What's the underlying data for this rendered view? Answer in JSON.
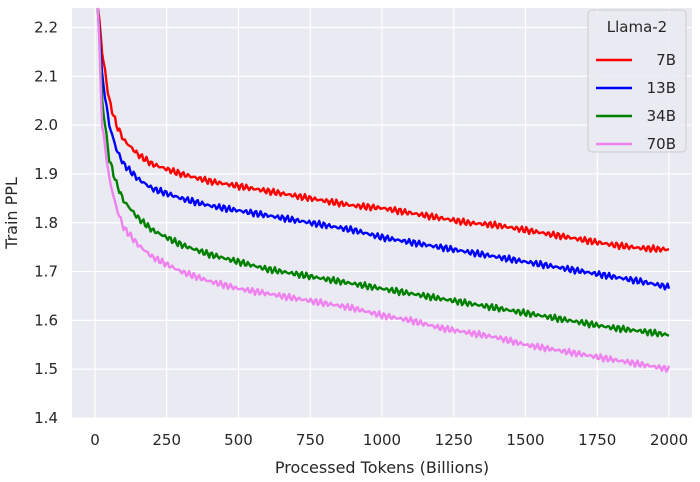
{
  "chart_data": {
    "type": "line",
    "title": "",
    "xlabel": "Processed Tokens (Billions)",
    "ylabel": "Train PPL",
    "xlim": [
      -80,
      2080
    ],
    "ylim": [
      1.4,
      2.24
    ],
    "xticks": [
      0,
      250,
      500,
      750,
      1000,
      1250,
      1500,
      1750,
      2000
    ],
    "yticks": [
      1.4,
      1.5,
      1.6,
      1.7,
      1.8,
      1.9,
      2.0,
      2.1,
      2.2
    ],
    "grid": true,
    "legend": {
      "title": "Llama-2",
      "position": "top-right"
    },
    "x": [
      10,
      25,
      50,
      75,
      100,
      150,
      200,
      250,
      300,
      400,
      500,
      600,
      700,
      800,
      900,
      1000,
      1100,
      1200,
      1300,
      1400,
      1500,
      1600,
      1700,
      1800,
      1900,
      2000
    ],
    "series": [
      {
        "name": "7B",
        "color": "#ff0000",
        "values": [
          2.25,
          2.15,
          2.05,
          2.0,
          1.97,
          1.94,
          1.92,
          1.91,
          1.9,
          1.885,
          1.875,
          1.865,
          1.855,
          1.845,
          1.835,
          1.83,
          1.82,
          1.81,
          1.8,
          1.795,
          1.785,
          1.775,
          1.765,
          1.755,
          1.748,
          1.745
        ]
      },
      {
        "name": "13B",
        "color": "#0000ff",
        "values": [
          2.25,
          2.1,
          2.0,
          1.95,
          1.92,
          1.89,
          1.87,
          1.86,
          1.85,
          1.835,
          1.825,
          1.815,
          1.805,
          1.795,
          1.785,
          1.77,
          1.76,
          1.75,
          1.74,
          1.73,
          1.72,
          1.71,
          1.7,
          1.69,
          1.68,
          1.668
        ]
      },
      {
        "name": "34B",
        "color": "#008000",
        "values": [
          2.25,
          2.05,
          1.93,
          1.88,
          1.845,
          1.81,
          1.785,
          1.77,
          1.755,
          1.735,
          1.72,
          1.705,
          1.695,
          1.685,
          1.675,
          1.665,
          1.655,
          1.645,
          1.635,
          1.625,
          1.615,
          1.605,
          1.595,
          1.585,
          1.578,
          1.57
        ]
      },
      {
        "name": "70B",
        "color": "#ee82ee",
        "values": [
          2.25,
          2.0,
          1.89,
          1.83,
          1.79,
          1.755,
          1.73,
          1.715,
          1.7,
          1.68,
          1.665,
          1.655,
          1.645,
          1.635,
          1.625,
          1.61,
          1.6,
          1.585,
          1.575,
          1.565,
          1.55,
          1.54,
          1.53,
          1.52,
          1.51,
          1.5
        ]
      }
    ]
  }
}
